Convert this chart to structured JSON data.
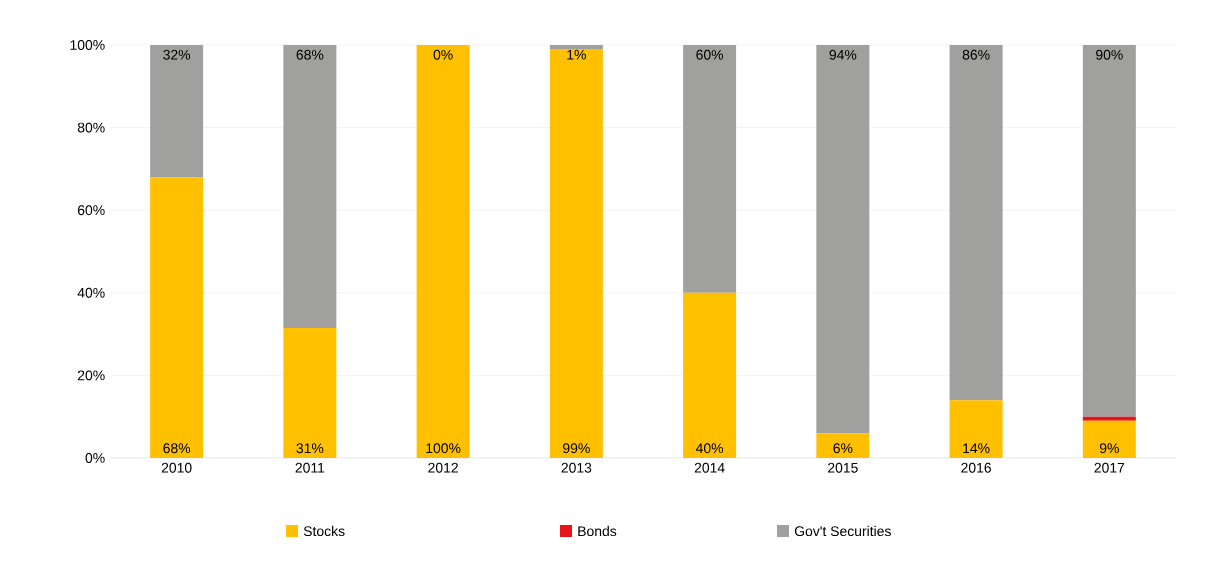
{
  "chart_data": {
    "type": "bar",
    "stacked": true,
    "categories": [
      "2010",
      "2011",
      "2012",
      "2013",
      "2014",
      "2015",
      "2016",
      "2017"
    ],
    "series": [
      {
        "name": "Stocks",
        "color": "#ffc000",
        "values": [
          68,
          31.5,
          100,
          99,
          40,
          6,
          14,
          9
        ],
        "value_labels": [
          "68%",
          "31%",
          "100%",
          "99%",
          "40%",
          "6%",
          "14%",
          "9%"
        ]
      },
      {
        "name": "Bonds",
        "color": "#e8141c",
        "values": [
          0,
          0,
          0,
          0,
          0,
          0,
          0,
          1
        ]
      },
      {
        "name": "Gov't Securities",
        "color": "#a0a09f",
        "values": [
          32,
          68.5,
          0,
          1,
          60,
          94,
          86,
          90
        ],
        "value_labels": [
          "32%",
          "68%",
          "0%",
          "1%",
          "60%",
          "94%",
          "86%",
          "90%"
        ]
      }
    ],
    "ylim": [
      0,
      100
    ],
    "yticks": [
      {
        "value": 0,
        "label": "0%"
      },
      {
        "value": 20,
        "label": "20%"
      },
      {
        "value": 40,
        "label": "40%"
      },
      {
        "value": 60,
        "label": "60%"
      },
      {
        "value": 80,
        "label": "80%"
      },
      {
        "value": 100,
        "label": "100%"
      }
    ],
    "grid": "y",
    "legend": "bottom"
  }
}
